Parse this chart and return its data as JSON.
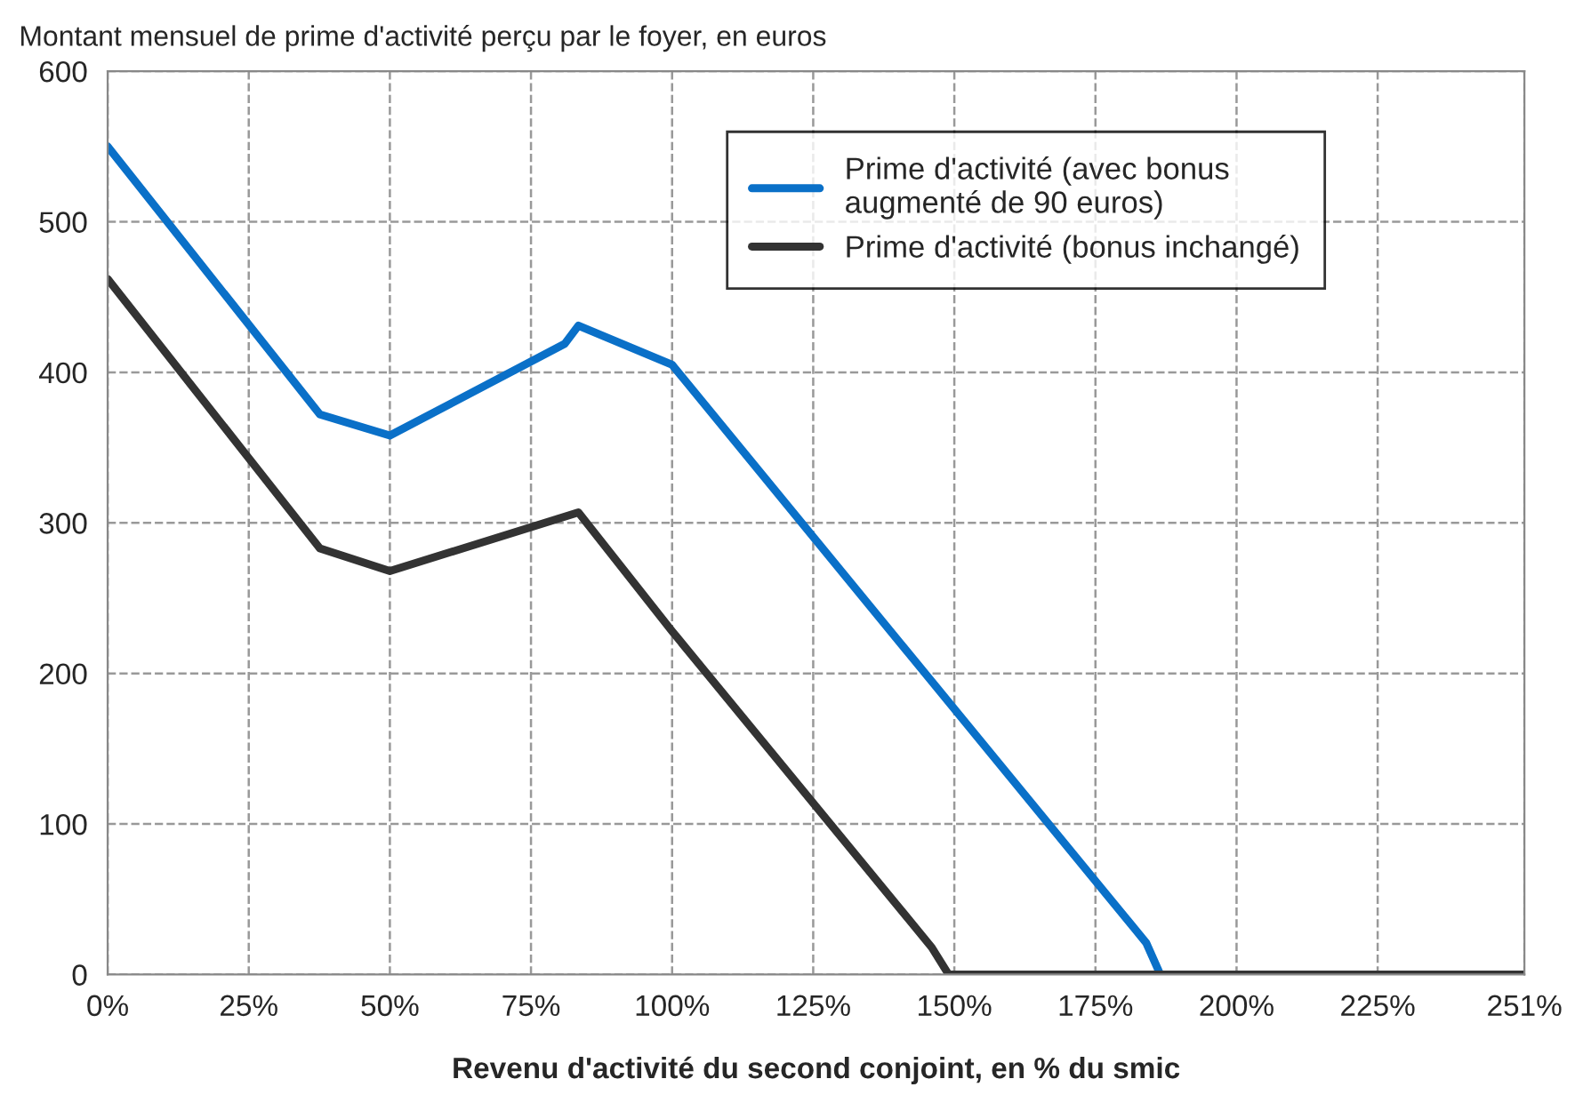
{
  "chart_data": {
    "type": "line",
    "title": "Montant mensuel de prime d'activité perçu par le foyer, en euros",
    "xlabel": "Revenu d'activité du second conjoint, en % du smic",
    "series": [
      {
        "name": "Prime d'activité (avec bonus augmenté de 90 euros)",
        "color": "#0a70c8",
        "x": [
          0,
          37.6,
          50,
          81,
          83.4,
          100,
          184,
          186.5,
          251
        ],
        "values": [
          550,
          372,
          358,
          419,
          431,
          405,
          21,
          0,
          0
        ]
      },
      {
        "name": "Prime d'activité (bonus inchangé)",
        "color": "#333333",
        "x": [
          0,
          37.6,
          50,
          83.4,
          100,
          146,
          149,
          251
        ],
        "values": [
          462,
          283,
          268,
          307,
          228,
          18,
          0,
          0
        ]
      }
    ],
    "xlim": [
      0,
      251
    ],
    "ylim": [
      0,
      600
    ],
    "xticks": [
      {
        "value": 0,
        "label": "0%"
      },
      {
        "value": 25,
        "label": "25%"
      },
      {
        "value": 50,
        "label": "50%"
      },
      {
        "value": 75,
        "label": "75%"
      },
      {
        "value": 100,
        "label": "100%"
      },
      {
        "value": 125,
        "label": "125%"
      },
      {
        "value": 150,
        "label": "150%"
      },
      {
        "value": 175,
        "label": "175%"
      },
      {
        "value": 200,
        "label": "200%"
      },
      {
        "value": 225,
        "label": "225%"
      },
      {
        "value": 251,
        "label": "251%"
      }
    ],
    "yticks": [
      0,
      100,
      200,
      300,
      400,
      500,
      600
    ],
    "grid": true,
    "legend": "top right",
    "line_style": "solid",
    "marker": "none"
  }
}
